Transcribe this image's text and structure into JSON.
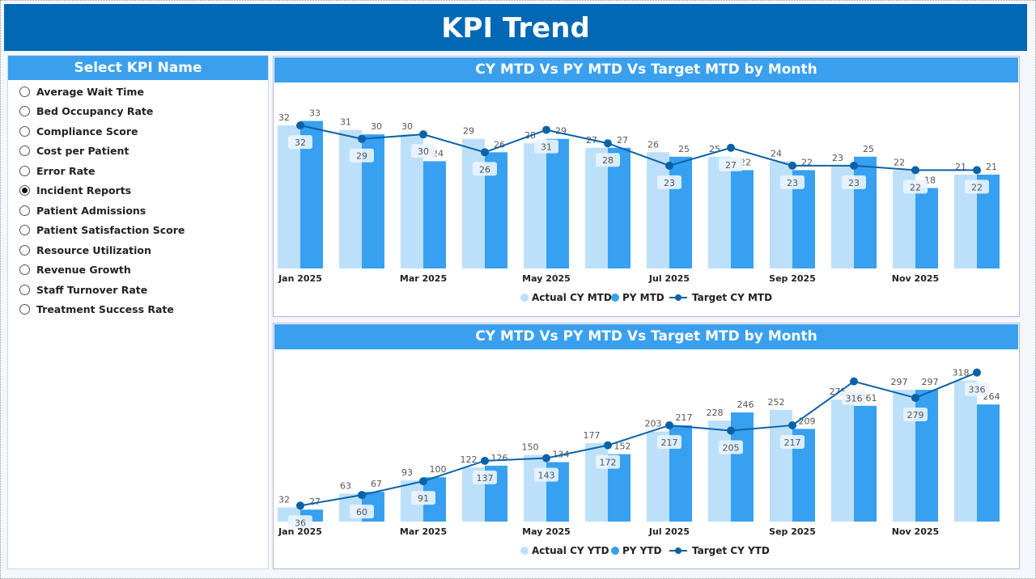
{
  "header": {
    "title": "KPI Trend"
  },
  "slicer": {
    "title": "Select KPI Name",
    "selected": "Incident Reports",
    "items": [
      "Average Wait Time",
      "Bed Occupancy Rate",
      "Compliance Score",
      "Cost per Patient",
      "Error Rate",
      "Incident Reports",
      "Patient Admissions",
      "Patient Satisfaction Score",
      "Resource Utilization",
      "Revenue Growth",
      "Staff Turnover Rate",
      "Treatment Success Rate"
    ]
  },
  "colors": {
    "header": "#0068b5",
    "title_bar": "#3aa0ee",
    "actual": "#bde0fa",
    "py": "#37a0f0",
    "target": "#0b62a8"
  },
  "chart_data": [
    {
      "type": "bar",
      "title": "CY MTD Vs PY MTD Vs Target MTD by Month",
      "categories": [
        "Jan 2025",
        "Feb 2025",
        "Mar 2025",
        "Apr 2025",
        "May 2025",
        "Jun 2025",
        "Jul 2025",
        "Aug 2025",
        "Sep 2025",
        "Oct 2025",
        "Nov 2025",
        "Dec 2025"
      ],
      "tick_labels": [
        "Jan 2025",
        "Mar 2025",
        "May 2025",
        "Jul 2025",
        "Sep 2025",
        "Nov 2025"
      ],
      "ylim": [
        0,
        36
      ],
      "series": [
        {
          "name": "Actual CY MTD",
          "kind": "bar",
          "values": [
            32,
            31,
            30,
            29,
            28,
            27,
            26,
            25,
            24,
            23,
            22,
            21
          ]
        },
        {
          "name": "PY MTD",
          "kind": "bar",
          "values": [
            33,
            30,
            24,
            26,
            29,
            27,
            25,
            22,
            22,
            25,
            18,
            21
          ]
        },
        {
          "name": "Target CY MTD",
          "kind": "line",
          "values": [
            32,
            29,
            30,
            26,
            31,
            28,
            23,
            27,
            23,
            23,
            22,
            22
          ]
        }
      ],
      "legend": "bottom"
    },
    {
      "type": "bar",
      "title": "CY MTD Vs PY MTD Vs Target MTD by Month",
      "categories": [
        "Jan 2025",
        "Feb 2025",
        "Mar 2025",
        "Apr 2025",
        "May 2025",
        "Jun 2025",
        "Jul 2025",
        "Aug 2025",
        "Sep 2025",
        "Oct 2025",
        "Nov 2025",
        "Dec 2025"
      ],
      "tick_labels": [
        "Jan 2025",
        "Mar 2025",
        "May 2025",
        "Jul 2025",
        "Sep 2025",
        "Nov 2025"
      ],
      "ylim": [
        0,
        350
      ],
      "series": [
        {
          "name": "Actual CY YTD",
          "kind": "bar",
          "values": [
            32,
            63,
            93,
            122,
            150,
            177,
            203,
            228,
            252,
            275,
            297,
            318
          ]
        },
        {
          "name": "PY YTD",
          "kind": "bar",
          "values": [
            27,
            67,
            100,
            126,
            134,
            152,
            217,
            246,
            209,
            261,
            297,
            264
          ]
        },
        {
          "name": "Target CY YTD",
          "kind": "line",
          "values": [
            36,
            60,
            91,
            137,
            143,
            172,
            217,
            205,
            217,
            316,
            279,
            336
          ]
        }
      ],
      "legend": "bottom"
    }
  ]
}
